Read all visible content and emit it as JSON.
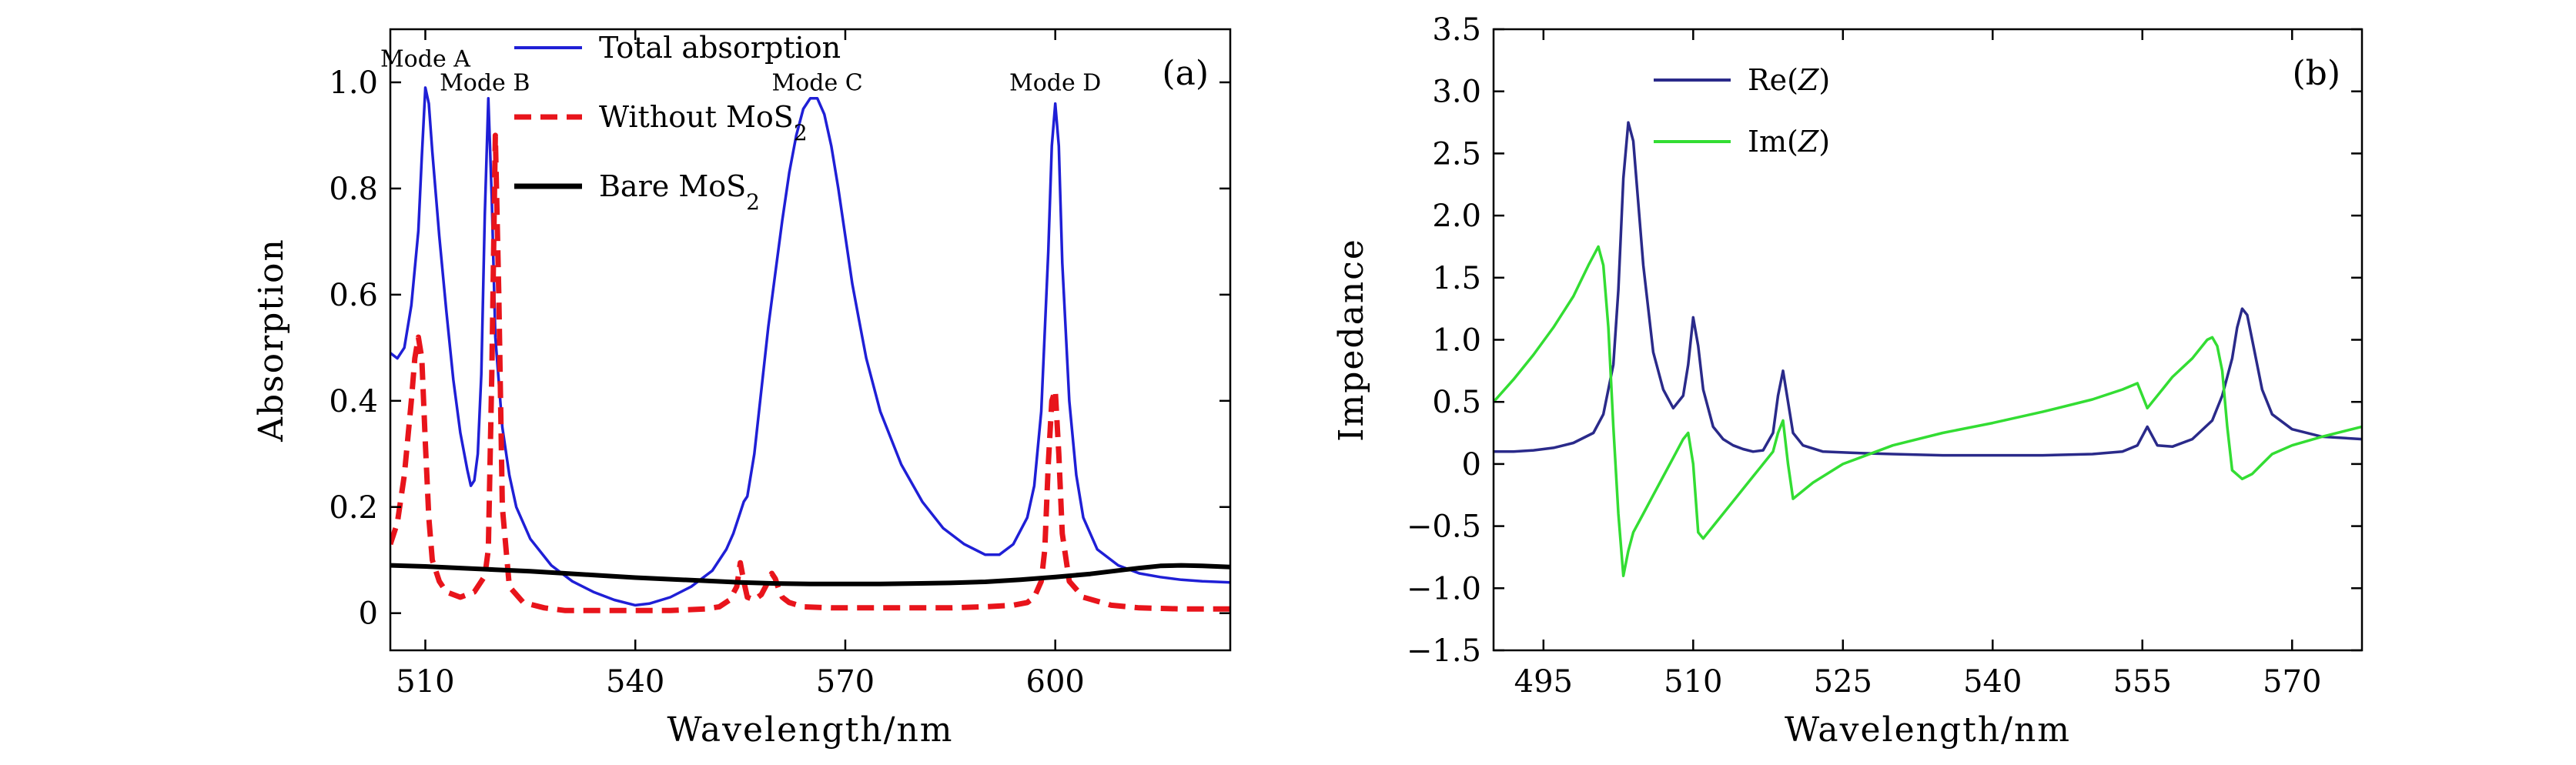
{
  "chart_data": [
    {
      "type": "line",
      "panel_label": "(a)",
      "xlabel": "Wavelength/nm",
      "ylabel": "Absorption",
      "xlim": [
        505,
        625
      ],
      "ylim": [
        -0.07,
        1.1
      ],
      "x_ticks": [
        510,
        540,
        570,
        600
      ],
      "y_ticks": [
        0,
        0.2,
        0.4,
        0.6,
        0.8,
        1.0
      ],
      "y_tick_labels": [
        "0",
        "0.2",
        "0.4",
        "0.6",
        "0.8",
        "1.0"
      ],
      "legend_position": "top-center",
      "annotations": [
        {
          "text": "Mode A",
          "x": 510,
          "y": 1.03
        },
        {
          "text": "Mode B",
          "x": 518.5,
          "y": 0.985
        },
        {
          "text": "Mode C",
          "x": 566,
          "y": 0.985
        },
        {
          "text": "Mode D",
          "x": 600,
          "y": 0.985
        }
      ],
      "series": [
        {
          "name": "Total absorption",
          "color": "#1f1fd6",
          "dash": "solid",
          "x": [
            505,
            506,
            507,
            508,
            509,
            509.5,
            510,
            510.5,
            511,
            512,
            513,
            514,
            515,
            516,
            516.5,
            517,
            517.5,
            518,
            518.5,
            519,
            519.5,
            520,
            521,
            522,
            523,
            525,
            528,
            531,
            534,
            537,
            540,
            542,
            545,
            548,
            551,
            553,
            554,
            555,
            555.5,
            556,
            557,
            558,
            559,
            560,
            561,
            562,
            563,
            564,
            565,
            566,
            567,
            568,
            569,
            570,
            571,
            572,
            573,
            575,
            578,
            581,
            584,
            587,
            590,
            592,
            594,
            596,
            597,
            598,
            599,
            599.5,
            600,
            600.5,
            601,
            602,
            603,
            604,
            606,
            609,
            612,
            615,
            618,
            621,
            625
          ],
          "y": [
            0.49,
            0.48,
            0.5,
            0.58,
            0.72,
            0.86,
            0.99,
            0.96,
            0.87,
            0.71,
            0.57,
            0.44,
            0.34,
            0.27,
            0.24,
            0.25,
            0.3,
            0.45,
            0.75,
            0.97,
            0.78,
            0.52,
            0.35,
            0.26,
            0.2,
            0.14,
            0.09,
            0.06,
            0.04,
            0.025,
            0.015,
            0.018,
            0.03,
            0.05,
            0.08,
            0.12,
            0.15,
            0.19,
            0.21,
            0.22,
            0.3,
            0.42,
            0.54,
            0.64,
            0.74,
            0.83,
            0.9,
            0.95,
            0.97,
            0.97,
            0.94,
            0.88,
            0.8,
            0.71,
            0.62,
            0.55,
            0.48,
            0.38,
            0.28,
            0.21,
            0.16,
            0.13,
            0.11,
            0.11,
            0.13,
            0.18,
            0.24,
            0.38,
            0.68,
            0.88,
            0.96,
            0.88,
            0.66,
            0.4,
            0.26,
            0.18,
            0.12,
            0.09,
            0.075,
            0.068,
            0.063,
            0.06,
            0.058
          ]
        },
        {
          "name": "Without MoS2",
          "color": "#e8141b",
          "dash": "dashed",
          "x": [
            505,
            506,
            507,
            508,
            508.5,
            509,
            509.5,
            510,
            510.5,
            511,
            512,
            513,
            515,
            517,
            518.5,
            519,
            519.5,
            520,
            520.5,
            521,
            522,
            524,
            527,
            530,
            535,
            540,
            545,
            550,
            552,
            553.5,
            554.5,
            555,
            555.5,
            556,
            557,
            558,
            559,
            559.5,
            560,
            560.5,
            561,
            562,
            564,
            568,
            575,
            580,
            585,
            590,
            594,
            596,
            597,
            598,
            598.5,
            599,
            599.5,
            600,
            600.5,
            601,
            602,
            604,
            608,
            612,
            618,
            625
          ],
          "y": [
            0.13,
            0.17,
            0.26,
            0.4,
            0.48,
            0.52,
            0.48,
            0.32,
            0.18,
            0.1,
            0.06,
            0.04,
            0.03,
            0.04,
            0.07,
            0.12,
            0.45,
            0.9,
            0.6,
            0.2,
            0.05,
            0.02,
            0.01,
            0.005,
            0.005,
            0.005,
            0.005,
            0.008,
            0.012,
            0.025,
            0.05,
            0.095,
            0.06,
            0.03,
            0.025,
            0.035,
            0.06,
            0.075,
            0.065,
            0.045,
            0.03,
            0.02,
            0.012,
            0.01,
            0.01,
            0.01,
            0.01,
            0.012,
            0.015,
            0.02,
            0.03,
            0.06,
            0.12,
            0.28,
            0.4,
            0.42,
            0.3,
            0.15,
            0.06,
            0.03,
            0.015,
            0.01,
            0.008,
            0.008
          ]
        },
        {
          "name": "Bare MoS2",
          "color": "#000000",
          "dash": "solid",
          "x": [
            505,
            510,
            515,
            520,
            525,
            530,
            535,
            540,
            545,
            550,
            555,
            560,
            565,
            570,
            575,
            580,
            585,
            590,
            595,
            600,
            605,
            610,
            612,
            615,
            618,
            621,
            625
          ],
          "y": [
            0.09,
            0.088,
            0.085,
            0.082,
            0.079,
            0.075,
            0.071,
            0.067,
            0.064,
            0.061,
            0.058,
            0.056,
            0.055,
            0.055,
            0.055,
            0.056,
            0.057,
            0.059,
            0.063,
            0.068,
            0.074,
            0.082,
            0.085,
            0.089,
            0.09,
            0.089,
            0.087
          ]
        }
      ]
    },
    {
      "type": "line",
      "panel_label": "(b)",
      "xlabel": "Wavelength/nm",
      "ylabel": "Impedance",
      "xlim": [
        490,
        577
      ],
      "ylim": [
        -1.5,
        3.5
      ],
      "x_ticks": [
        495,
        510,
        525,
        540,
        555,
        570
      ],
      "y_ticks": [
        -1.5,
        -1.0,
        -0.5,
        0,
        0.5,
        1.0,
        1.5,
        2.0,
        2.5,
        3.0,
        3.5
      ],
      "y_tick_labels": [
        "−1.5",
        "−1.0",
        "−0.5",
        "0",
        "0.5",
        "1.0",
        "1.5",
        "2.0",
        "2.5",
        "3.0",
        "3.5"
      ],
      "legend_position": "top-left",
      "series": [
        {
          "name": "Re(Z)",
          "color": "#2a2a8a",
          "dash": "solid",
          "x": [
            490,
            492,
            494,
            496,
            498,
            500,
            501,
            502,
            502.5,
            503,
            503.5,
            504,
            505,
            506,
            507,
            508,
            509,
            509.5,
            510,
            510.5,
            511,
            512,
            513,
            514,
            515,
            516,
            517,
            518,
            518.5,
            519,
            519.5,
            520,
            521,
            523,
            526,
            530,
            535,
            540,
            545,
            550,
            553,
            554.5,
            555.5,
            556.5,
            558,
            560,
            562,
            563,
            564,
            564.5,
            565,
            565.5,
            566,
            567,
            568,
            570,
            573,
            577
          ],
          "y": [
            0.1,
            0.1,
            0.11,
            0.13,
            0.17,
            0.25,
            0.4,
            0.8,
            1.4,
            2.3,
            2.75,
            2.6,
            1.6,
            0.9,
            0.6,
            0.45,
            0.55,
            0.8,
            1.18,
            0.95,
            0.6,
            0.3,
            0.2,
            0.15,
            0.12,
            0.1,
            0.11,
            0.25,
            0.55,
            0.75,
            0.5,
            0.25,
            0.15,
            0.1,
            0.09,
            0.08,
            0.07,
            0.07,
            0.07,
            0.08,
            0.1,
            0.15,
            0.3,
            0.15,
            0.14,
            0.2,
            0.35,
            0.55,
            0.85,
            1.1,
            1.25,
            1.2,
            1.0,
            0.6,
            0.4,
            0.28,
            0.22,
            0.2
          ]
        },
        {
          "name": "Im(Z)",
          "color": "#33dd33",
          "dash": "solid",
          "x": [
            490,
            492,
            494,
            496,
            498,
            499.5,
            500.5,
            501,
            501.5,
            502,
            502.5,
            503,
            503.5,
            504,
            505,
            506,
            507,
            508,
            509,
            509.5,
            510,
            510.5,
            511,
            512,
            514,
            516,
            517,
            518,
            518.5,
            519,
            519.5,
            520,
            522,
            525,
            530,
            535,
            540,
            545,
            550,
            553,
            554.5,
            555.5,
            556,
            557,
            558,
            560,
            561.5,
            562,
            562.5,
            563,
            563.5,
            564,
            565,
            566,
            567,
            568,
            570,
            573,
            577
          ],
          "y": [
            0.5,
            0.68,
            0.88,
            1.1,
            1.35,
            1.6,
            1.75,
            1.6,
            1.1,
            0.3,
            -0.4,
            -0.9,
            -0.7,
            -0.55,
            -0.4,
            -0.25,
            -0.1,
            0.05,
            0.2,
            0.25,
            0.0,
            -0.55,
            -0.6,
            -0.5,
            -0.3,
            -0.1,
            0.0,
            0.1,
            0.25,
            0.35,
            0.0,
            -0.28,
            -0.15,
            0.0,
            0.15,
            0.25,
            0.33,
            0.42,
            0.52,
            0.6,
            0.65,
            0.45,
            0.5,
            0.6,
            0.7,
            0.85,
            1.0,
            1.02,
            0.95,
            0.75,
            0.3,
            -0.05,
            -0.12,
            -0.08,
            0.0,
            0.08,
            0.15,
            0.22,
            0.3
          ]
        }
      ]
    }
  ]
}
